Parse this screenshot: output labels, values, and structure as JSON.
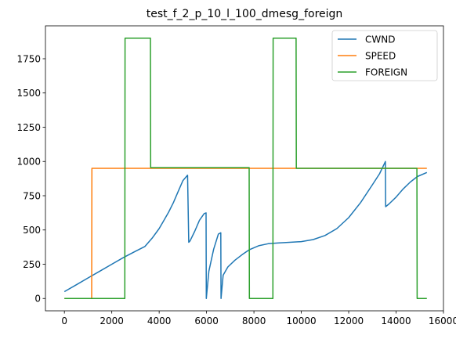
{
  "chart_data": {
    "type": "line",
    "title": "test_f_2_p_10_l_100_dmesg_foreign",
    "xlabel": "",
    "ylabel": "",
    "xlim": [
      -800,
      16000
    ],
    "ylim": [
      -90,
      1990
    ],
    "x_ticks": [
      0,
      2000,
      4000,
      6000,
      8000,
      10000,
      12000,
      14000,
      16000
    ],
    "x_tick_labels": [
      "0",
      "2000",
      "4000",
      "6000",
      "8000",
      "10000",
      "12000",
      "14000",
      "16000"
    ],
    "y_ticks": [
      0,
      250,
      500,
      750,
      1000,
      1250,
      1500,
      1750
    ],
    "y_tick_labels": [
      "0",
      "250",
      "500",
      "750",
      "1000",
      "1250",
      "1500",
      "1750"
    ],
    "grid": false,
    "legend_position": "top-right",
    "series": [
      {
        "name": "CWND",
        "color": "#1f77b4",
        "x": [
          0,
          500,
          1000,
          1500,
          2000,
          2500,
          3000,
          3400,
          3700,
          4000,
          4200,
          4400,
          4600,
          4800,
          5000,
          5200,
          5250,
          5300,
          5500,
          5700,
          5900,
          5980,
          5990,
          6100,
          6300,
          6500,
          6600,
          6610,
          6700,
          6900,
          7200,
          7500,
          7800,
          8200,
          8600,
          9000,
          9500,
          10000,
          10500,
          11000,
          11500,
          12000,
          12500,
          13000,
          13300,
          13550,
          13560,
          13700,
          14000,
          14300,
          14600,
          14900,
          15300
        ],
        "y": [
          50,
          100,
          150,
          200,
          250,
          300,
          345,
          380,
          440,
          510,
          570,
          630,
          700,
          780,
          860,
          900,
          410,
          420,
          490,
          570,
          620,
          625,
          0,
          200,
          360,
          470,
          480,
          0,
          170,
          230,
          280,
          320,
          355,
          385,
          400,
          405,
          410,
          415,
          430,
          460,
          510,
          590,
          700,
          830,
          910,
          1000,
          670,
          690,
          740,
          800,
          850,
          890,
          920
        ]
      },
      {
        "name": "SPEED",
        "color": "#ff7f0e",
        "x": [
          0,
          1150,
          1160,
          15300
        ],
        "y": [
          0,
          0,
          950,
          950
        ]
      },
      {
        "name": "FOREIGN",
        "color": "#2ca02c",
        "x": [
          0,
          2550,
          2560,
          3630,
          3640,
          7800,
          7810,
          8800,
          8810,
          9780,
          9790,
          14880,
          14890,
          15300
        ],
        "y": [
          0,
          0,
          1900,
          1900,
          955,
          955,
          0,
          0,
          1900,
          1900,
          950,
          950,
          0,
          0
        ]
      }
    ]
  }
}
